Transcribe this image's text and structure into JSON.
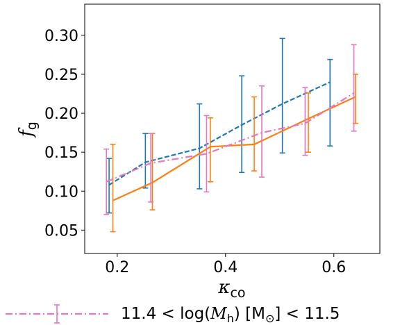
{
  "chart_data": {
    "type": "line",
    "xlim": [
      0.14,
      0.685
    ],
    "ylim": [
      0.02,
      0.34
    ],
    "x_ticks": [
      0.2,
      0.4,
      0.6
    ],
    "x_tick_labels": [
      "0.2",
      "0.4",
      "0.6"
    ],
    "y_ticks": [
      0.05,
      0.1,
      0.15,
      0.2,
      0.25,
      0.3
    ],
    "y_tick_labels": [
      "0.05",
      "0.10",
      "0.15",
      "0.20",
      "0.25",
      "0.30"
    ],
    "xlabel_base": "κ",
    "xlabel_sub": "co",
    "ylabel_base": "f",
    "ylabel_sub": "g",
    "grid": false,
    "legend_position": "below",
    "legend_label": "11.4 < log(M_h) [M_⊙] < 11.5",
    "legend_parts": {
      "pre": "11.4  <  log(",
      "m": "M",
      "m_sub": "h",
      "mid": ")  [M",
      "sun": "⊙",
      "post": "]  <  11.5"
    },
    "series": [
      {
        "color": "#1f77b4",
        "linestyle": "dashed",
        "points": [
          {
            "x": 0.185,
            "y": 0.108,
            "lo": 0.072,
            "hi": 0.142
          },
          {
            "x": 0.252,
            "y": 0.137,
            "lo": 0.104,
            "hi": 0.174
          },
          {
            "x": 0.352,
            "y": 0.155,
            "lo": 0.103,
            "hi": 0.212
          },
          {
            "x": 0.43,
            "y": 0.185,
            "lo": 0.124,
            "hi": 0.248
          },
          {
            "x": 0.505,
            "y": 0.212,
            "lo": 0.149,
            "hi": 0.296
          },
          {
            "x": 0.593,
            "y": 0.24,
            "lo": 0.158,
            "hi": 0.269
          }
        ]
      },
      {
        "color": "#ff7f0e",
        "linestyle": "solid",
        "points": [
          {
            "x": 0.192,
            "y": 0.088,
            "lo": 0.048,
            "hi": 0.16
          },
          {
            "x": 0.265,
            "y": 0.111,
            "lo": 0.076,
            "hi": 0.174
          },
          {
            "x": 0.372,
            "y": 0.157,
            "lo": 0.112,
            "hi": 0.194
          },
          {
            "x": 0.453,
            "y": 0.16,
            "lo": 0.126,
            "hi": 0.221
          },
          {
            "x": 0.553,
            "y": 0.193,
            "lo": 0.15,
            "hi": 0.226
          },
          {
            "x": 0.64,
            "y": 0.221,
            "lo": 0.187,
            "hi": 0.25
          }
        ]
      },
      {
        "color": "#e377c2",
        "linestyle": "dashdot",
        "points": [
          {
            "x": 0.18,
            "y": 0.112,
            "lo": 0.07,
            "hi": 0.154
          },
          {
            "x": 0.262,
            "y": 0.136,
            "lo": 0.086,
            "hi": 0.174
          },
          {
            "x": 0.365,
            "y": 0.148,
            "lo": 0.099,
            "hi": 0.197
          },
          {
            "x": 0.467,
            "y": 0.175,
            "lo": 0.118,
            "hi": 0.235
          },
          {
            "x": 0.547,
            "y": 0.187,
            "lo": 0.146,
            "hi": 0.233
          },
          {
            "x": 0.637,
            "y": 0.226,
            "lo": 0.177,
            "hi": 0.288
          }
        ]
      }
    ]
  }
}
